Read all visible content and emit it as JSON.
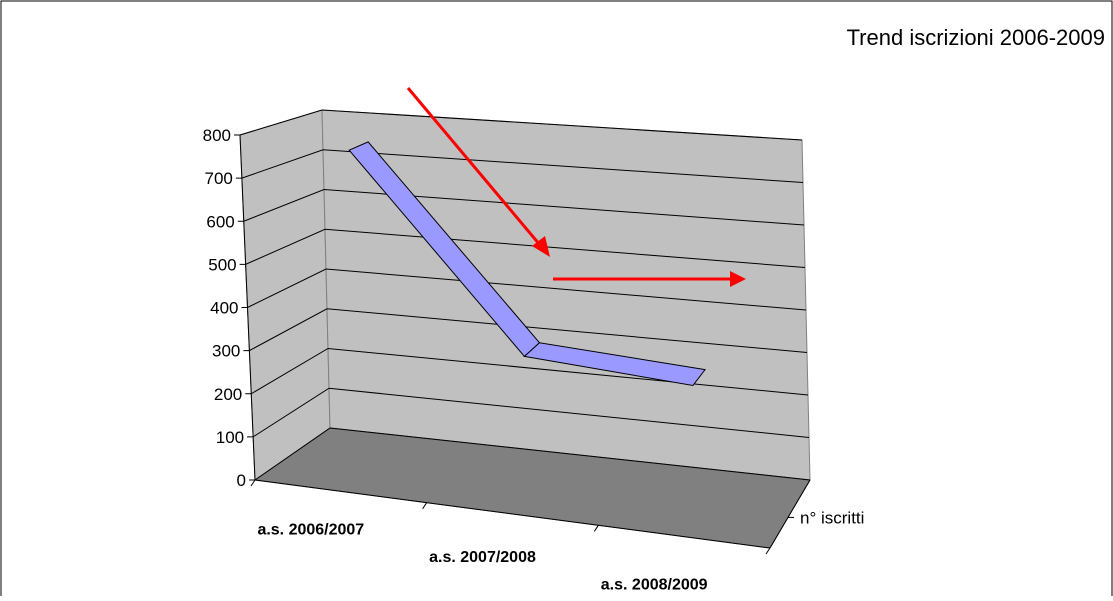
{
  "chart_data": {
    "type": "line3d",
    "title": "Trend iscrizioni 2006-2009",
    "categories": [
      "a.s. 2006/2007",
      "a.s. 2007/2008",
      "a.s. 2008/2009"
    ],
    "series": [
      {
        "name": "n° iscritti",
        "color": "#9999ff",
        "values": [
          770,
          330,
          310
        ]
      }
    ],
    "ylim": [
      0,
      800
    ],
    "yticks": [
      0,
      100,
      200,
      300,
      400,
      500,
      600,
      700,
      800
    ],
    "grid": true
  }
}
